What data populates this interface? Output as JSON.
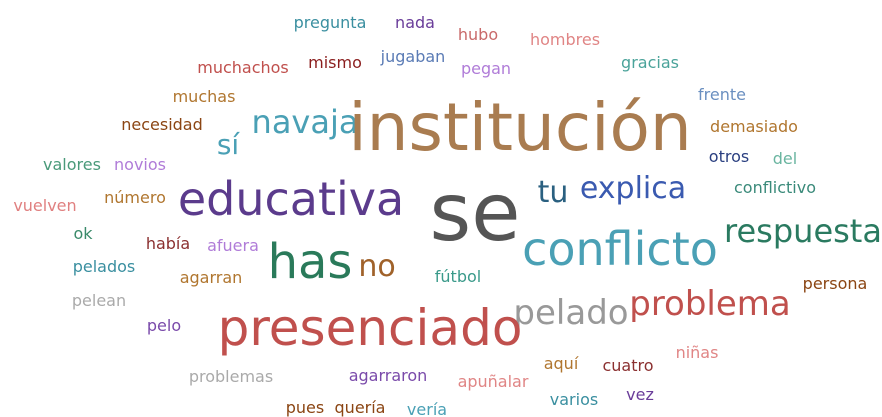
{
  "words": [
    "pregunta",
    "nada",
    "hubo",
    "hombres",
    "muchachos",
    "mismo",
    "jugaban",
    "pegan",
    "gracias",
    "muchas",
    "frente",
    "necesidad",
    "sí",
    "navaja",
    "institución",
    "demasiado",
    "valores",
    "novios",
    "otros",
    "del",
    "educativa",
    "se",
    "tu",
    "explica",
    "conflictivo",
    "vuelven",
    "número",
    "conflicto",
    "respuesta",
    "ok",
    "había",
    "afuera",
    "has",
    "no",
    "pelados",
    "agarran",
    "fútbol",
    "persona",
    "pelean",
    "pelado",
    "problema",
    "presenciado",
    "pelo",
    "niñas",
    "aquí",
    "cuatro",
    "problemas",
    "agarraron",
    "apuñalar",
    "pues",
    "quería",
    "vería",
    "varios",
    "vez"
  ]
}
